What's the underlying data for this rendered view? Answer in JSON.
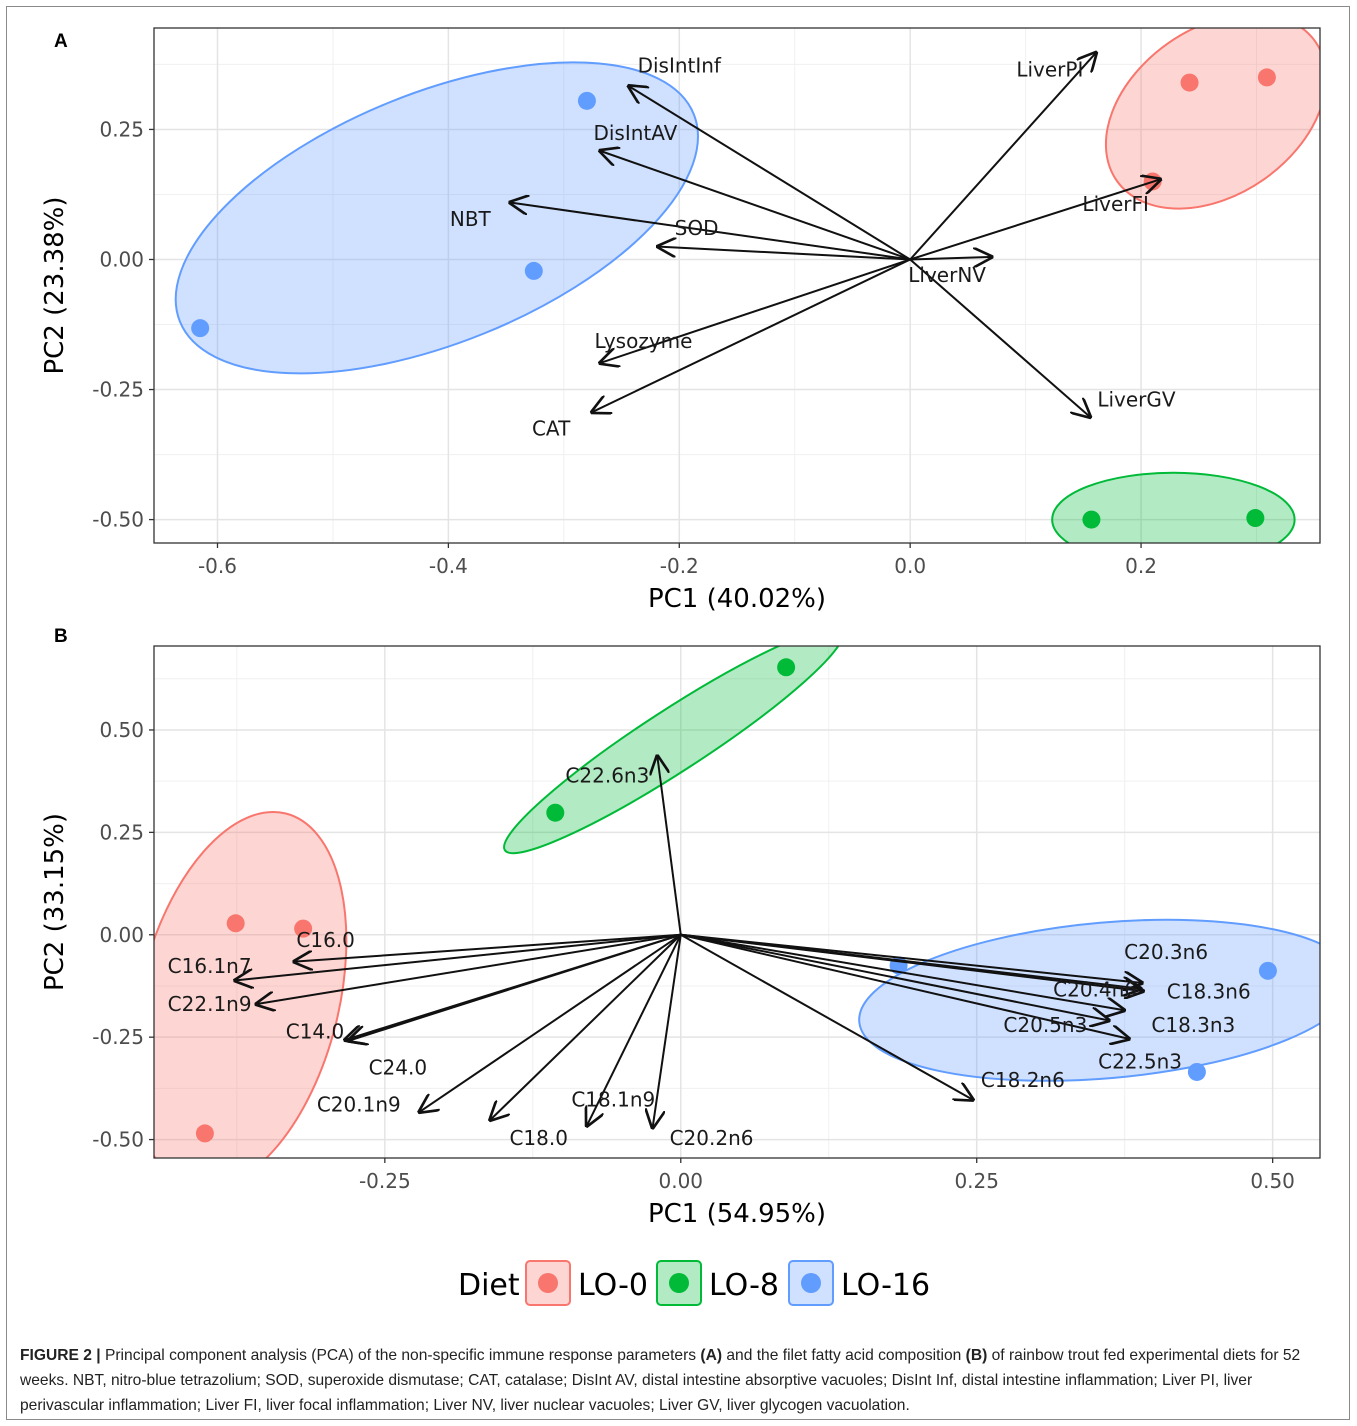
{
  "figure": {
    "legend": {
      "title": "Diet",
      "items": [
        {
          "label": "LO-0",
          "color": "#F8766D"
        },
        {
          "label": "LO-8",
          "color": "#00BA38"
        },
        {
          "label": "LO-16",
          "color": "#619CFF"
        }
      ]
    },
    "caption": {
      "label": "FIGURE 2 |",
      "p1": " Principal component analysis (PCA) of the non-specific immune response parameters ",
      "b1": "(A)",
      "p2": " and the filet fatty acid composition ",
      "b2": "(B)",
      "p3": " of rainbow trout fed experimental diets for 52 weeks. NBT, nitro-blue tetrazolium; SOD, superoxide dismutase; CAT, catalase; DisInt AV, distal intestine absorptive vacuoles; DisInt Inf, distal intestine inflammation; Liver PI, liver perivascular inflammation; Liver FI, liver focal inflammation; Liver NV, liver nuclear vacuoles; Liver GV, liver glycogen vacuolation."
    }
  },
  "chart_data": [
    {
      "panel": "A",
      "type": "scatter",
      "xlabel": "PC1 (40.02%)",
      "ylabel": "PC2 (23.38%)",
      "xlim": [
        -0.655,
        0.355
      ],
      "ylim": [
        -0.545,
        0.445
      ],
      "xticks": [
        -0.6,
        -0.4,
        -0.2,
        0.0,
        0.2
      ],
      "xtick_labels": [
        "-0.6",
        "-0.4",
        "-0.2",
        "0.0",
        "0.2"
      ],
      "yticks": [
        -0.5,
        -0.25,
        0.0,
        0.25
      ],
      "ytick_labels": [
        "-0.50",
        "-0.25",
        "0.00",
        "0.25"
      ],
      "grid": true,
      "legend": "bottom",
      "series": [
        {
          "name": "LO-0",
          "color": "#F8766D",
          "points": [
            [
              0.242,
              0.34
            ],
            [
              0.309,
              0.35
            ],
            [
              0.21,
              0.15
            ]
          ],
          "ellipse": {
            "cx": 0.265,
            "cy": 0.285,
            "rx": 0.105,
            "ry": 0.16,
            "angle": -35
          }
        },
        {
          "name": "LO-8",
          "color": "#00BA38",
          "points": [
            [
              0.157,
              -0.5
            ],
            [
              0.299,
              -0.497
            ]
          ],
          "ellipse": {
            "cx": 0.228,
            "cy": -0.5,
            "rx": 0.105,
            "ry": 0.09,
            "angle": 0
          }
        },
        {
          "name": "LO-16",
          "color": "#619CFF",
          "points": [
            [
              -0.28,
              0.305
            ],
            [
              -0.326,
              -0.022
            ],
            [
              -0.615,
              -0.132
            ]
          ],
          "ellipse": {
            "cx": -0.41,
            "cy": 0.08,
            "rx": 0.24,
            "ry": 0.24,
            "angle": -22
          }
        }
      ],
      "loadings": [
        {
          "label": "DisIntInf",
          "x": -0.245,
          "y": 0.335,
          "lx": -0.2,
          "ly": 0.37
        },
        {
          "label": "DisIntAV",
          "x": -0.27,
          "y": 0.21,
          "lx": -0.238,
          "ly": 0.24
        },
        {
          "label": "NBT",
          "x": -0.348,
          "y": 0.11,
          "lx": -0.381,
          "ly": 0.075
        },
        {
          "label": "SOD",
          "x": -0.22,
          "y": 0.025,
          "lx": -0.185,
          "ly": 0.058
        },
        {
          "label": "Lysozyme",
          "x": -0.27,
          "y": -0.2,
          "lx": -0.231,
          "ly": -0.16
        },
        {
          "label": "CAT",
          "x": -0.277,
          "y": -0.295,
          "lx": -0.311,
          "ly": -0.328
        },
        {
          "label": "LiverPI",
          "x": 0.162,
          "y": 0.4,
          "lx": 0.121,
          "ly": 0.362
        },
        {
          "label": "LiverFI",
          "x": 0.218,
          "y": 0.155,
          "lx": 0.178,
          "ly": 0.104
        },
        {
          "label": "LiverNV",
          "x": 0.072,
          "y": 0.005,
          "lx": 0.032,
          "ly": -0.033
        },
        {
          "label": "LiverGV",
          "x": 0.157,
          "y": -0.305,
          "lx": 0.196,
          "ly": -0.272
        }
      ]
    },
    {
      "panel": "B",
      "type": "scatter",
      "xlabel": "PC1 (54.95%)",
      "ylabel": "PC2 (33.15%)",
      "xlim": [
        -0.445,
        0.54
      ],
      "ylim": [
        -0.545,
        0.705
      ],
      "xticks": [
        -0.25,
        0.0,
        0.25,
        0.5
      ],
      "xtick_labels": [
        "-0.25",
        "0.00",
        "0.25",
        "0.50"
      ],
      "yticks": [
        -0.5,
        -0.25,
        0.0,
        0.25,
        0.5
      ],
      "ytick_labels": [
        "-0.50",
        "-0.25",
        "0.00",
        "0.25",
        "0.50"
      ],
      "grid": true,
      "legend": "bottom",
      "series": [
        {
          "name": "LO-0",
          "color": "#F8766D",
          "points": [
            [
              -0.376,
              0.028
            ],
            [
              -0.319,
              0.015
            ],
            [
              -0.402,
              -0.485
            ]
          ],
          "ellipse": {
            "cx": -0.373,
            "cy": -0.16,
            "rx": 0.084,
            "ry": 0.47,
            "angle": 14
          }
        },
        {
          "name": "LO-8",
          "color": "#00BA38",
          "points": [
            [
              0.089,
              0.653
            ],
            [
              -0.106,
              0.298
            ]
          ],
          "ellipse": {
            "cx": -0.006,
            "cy": 0.474,
            "rx": 0.17,
            "ry": 0.075,
            "angle": -33
          }
        },
        {
          "name": "LO-16",
          "color": "#619CFF",
          "points": [
            [
              0.184,
              -0.075
            ],
            [
              0.496,
              -0.088
            ],
            [
              0.436,
              -0.335
            ]
          ],
          "ellipse": {
            "cx": 0.36,
            "cy": -0.16,
            "rx": 0.21,
            "ry": 0.19,
            "angle": -5
          }
        }
      ],
      "loadings": [
        {
          "label": "C22.6n3",
          "x": -0.02,
          "y": 0.44,
          "lx": -0.062,
          "ly": 0.385
        },
        {
          "label": "C16.0",
          "x": -0.328,
          "y": -0.066,
          "lx": -0.3,
          "ly": -0.017
        },
        {
          "label": "C16.1n7",
          "x": -0.378,
          "y": -0.112,
          "lx": -0.398,
          "ly": -0.08
        },
        {
          "label": "C22.1n9",
          "x": -0.36,
          "y": -0.17,
          "lx": -0.398,
          "ly": -0.173
        },
        {
          "label": "C14.0",
          "x": -0.282,
          "y": -0.26,
          "lx": -0.309,
          "ly": -0.24
        },
        {
          "label": "C24.0",
          "x": -0.285,
          "y": -0.258,
          "lx": -0.239,
          "ly": -0.328
        },
        {
          "label": "C20.1n9",
          "x": -0.222,
          "y": -0.435,
          "lx": -0.272,
          "ly": -0.418
        },
        {
          "label": "C18.0",
          "x": -0.162,
          "y": -0.455,
          "lx": -0.12,
          "ly": -0.5
        },
        {
          "label": "C18.1n9",
          "x": -0.08,
          "y": -0.47,
          "lx": -0.057,
          "ly": -0.406
        },
        {
          "label": "C20.2n6",
          "x": -0.024,
          "y": -0.475,
          "lx": 0.026,
          "ly": -0.5
        },
        {
          "label": "C20.3n6",
          "x": 0.391,
          "y": -0.118,
          "lx": 0.41,
          "ly": -0.046
        },
        {
          "label": "C20.4n6",
          "x": 0.392,
          "y": -0.138,
          "lx": 0.35,
          "ly": -0.137
        },
        {
          "label": "C18.3n6",
          "x": 0.39,
          "y": -0.132,
          "lx": 0.446,
          "ly": -0.142
        },
        {
          "label": "C20.5n3",
          "x": 0.363,
          "y": -0.21,
          "lx": 0.308,
          "ly": -0.224
        },
        {
          "label": "C18.3n3",
          "x": 0.376,
          "y": -0.185,
          "lx": 0.433,
          "ly": -0.224
        },
        {
          "label": "C22.5n3",
          "x": 0.38,
          "y": -0.255,
          "lx": 0.388,
          "ly": -0.313
        },
        {
          "label": "C18.2n6",
          "x": 0.248,
          "y": -0.405,
          "lx": 0.289,
          "ly": -0.358
        }
      ]
    }
  ]
}
